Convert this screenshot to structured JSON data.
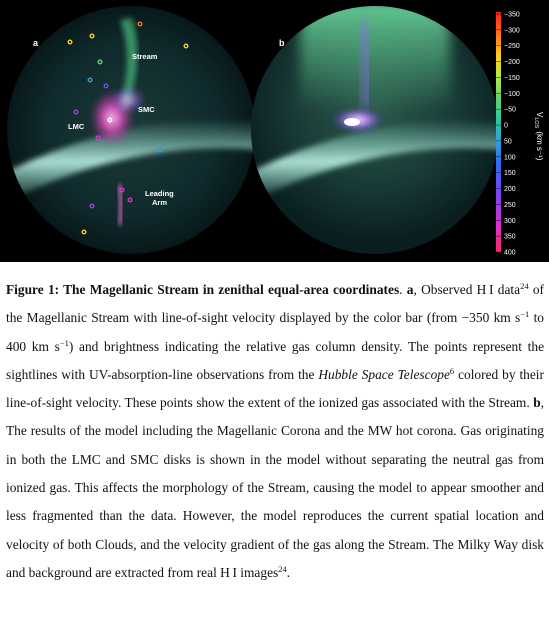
{
  "figure": {
    "panel_a": {
      "label": "a",
      "annotations": [
        "Stream",
        "SMC",
        "LMC",
        "Leading",
        "Arm"
      ]
    },
    "panel_b": {
      "label": "b"
    },
    "colorbar": {
      "title_main": "V",
      "title_sub": "LOS",
      "title_unit": "(km s⁻¹)",
      "ticks": [
        "−350",
        "−300",
        "−250",
        "−200",
        "−150",
        "−100",
        "−50",
        "0",
        "50",
        "100",
        "150",
        "200",
        "250",
        "300",
        "350",
        "400"
      ],
      "tick_values": [
        -350,
        -300,
        -250,
        -200,
        -150,
        -100,
        -50,
        0,
        50,
        100,
        150,
        200,
        250,
        300,
        350,
        400
      ],
      "colors": [
        "#ff1e1e",
        "#ff6e1e",
        "#ffcc1e",
        "#b8e646",
        "#64d270",
        "#2ec4a0",
        "#2ea0dc",
        "#2e6ef0",
        "#6450f0",
        "#a03ce6",
        "#dc32c8",
        "#ff2864"
      ]
    }
  },
  "caption": {
    "s1_label": "Figure 1: The Magellanic Stream in zenithal equal-area coordinates",
    "s2": ". ",
    "s3_bold": "a",
    "s4": ", Observed H I data",
    "s5_sup": "24",
    "s6": " of the Magellanic Stream with line-of-sight velocity displayed by the color bar (from −350 km s",
    "s7_sup": "−1",
    "s8": " to 400 km s",
    "s9_sup": "−1",
    "s10": ") and brightness indicating the relative gas column density. The points represent the sightlines with UV-absorption-line observations from the ",
    "s11_italic": "Hubble Space Telescope",
    "s12_sup": "6",
    "s13": " colored by their line-of-sight velocity. These points show the extent of the ionized gas associated with the Stream. ",
    "s14_bold": "b",
    "s15": ", The results of the model including the Magellanic Corona and the MW hot corona. Gas originating in both the LMC and SMC disks is shown in the model without separating the neutral gas from ionized gas. This affects the morphology of the Stream, causing the model to appear smoother and less fragmented than the data. However, the model reproduces the current spatial location and velocity of both Clouds, and the velocity gradient of the gas along the Stream. The Milky Way disk and background are extracted from real H I images",
    "s16_sup": "24",
    "s17": "."
  }
}
